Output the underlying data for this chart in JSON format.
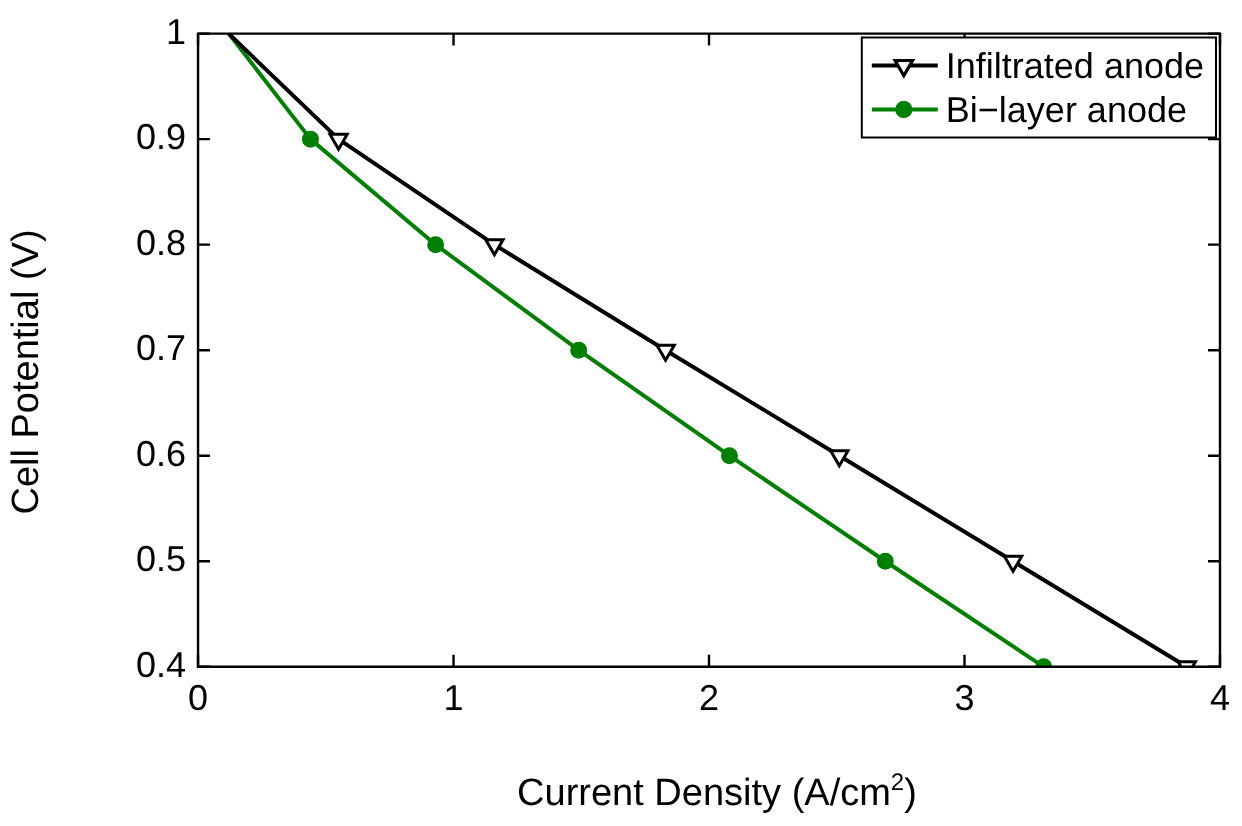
{
  "chart_data": {
    "type": "line",
    "xlabel": "Current Density (A/cm$^{2}$)",
    "ylabel": "Cell Potential (V)",
    "xlim": [
      0,
      4
    ],
    "xticks": [
      0,
      1,
      2,
      3,
      4
    ],
    "ylim": [
      0.4,
      1
    ],
    "yticks": [
      0.4,
      0.5,
      0.6,
      0.7,
      0.8,
      0.9,
      1
    ],
    "grid": false,
    "legend": "top right",
    "line_style": "solid",
    "series": [
      {
        "name": "Infiltrated anode",
        "color": "#000000",
        "marker": "triangle",
        "x": [
          0.12,
          0.55,
          1.16,
          1.83,
          2.51,
          3.19,
          3.87
        ],
        "values": [
          1,
          0.9,
          0.8,
          0.7,
          0.6,
          0.5,
          0.4
        ]
      },
      {
        "name": "Bi−layer anode",
        "color": "#008000",
        "marker": "circle",
        "x": [
          0.12,
          0.44,
          0.93,
          1.49,
          2.08,
          2.69,
          3.31
        ],
        "values": [
          1,
          0.9,
          0.8,
          0.7,
          0.6,
          0.5,
          0.4
        ]
      }
    ]
  }
}
